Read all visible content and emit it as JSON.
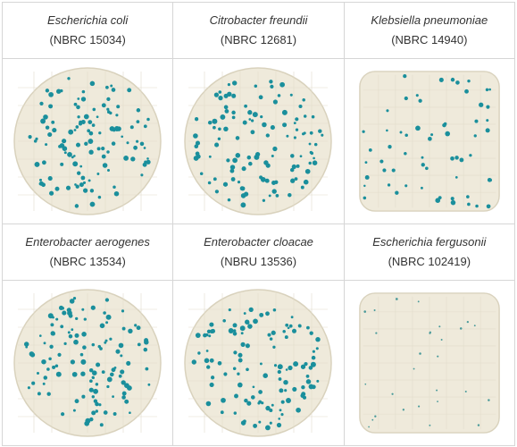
{
  "organisms": [
    {
      "name": "Escherichia coli",
      "code": "(NBRC 15034)",
      "colony_density": "high",
      "colony_color": "#1a8f9c"
    },
    {
      "name": "Citrobacter freundii",
      "code": "(NBRC 12681)",
      "colony_density": "high",
      "colony_color": "#1a8f9c"
    },
    {
      "name": "Klebsiella pneumoniae",
      "code": "(NBRC 14940)",
      "colony_density": "medium",
      "colony_color": "#1a8f9c"
    },
    {
      "name": "Enterobacter aerogenes",
      "code": "(NBRC 13534)",
      "colony_density": "high",
      "colony_color": "#1a8f9c"
    },
    {
      "name": "Enterobacter cloacae",
      "code": "(NBRU 13536)",
      "colony_density": "high",
      "colony_color": "#1a8f9c"
    },
    {
      "name": "Escherichia fergusonii",
      "code": "(NBRC 102419)",
      "colony_density": "low",
      "colony_color": "#4a9a9a"
    }
  ],
  "plate_color": "#efeadb",
  "plate_border_color": "#d9d2bd"
}
